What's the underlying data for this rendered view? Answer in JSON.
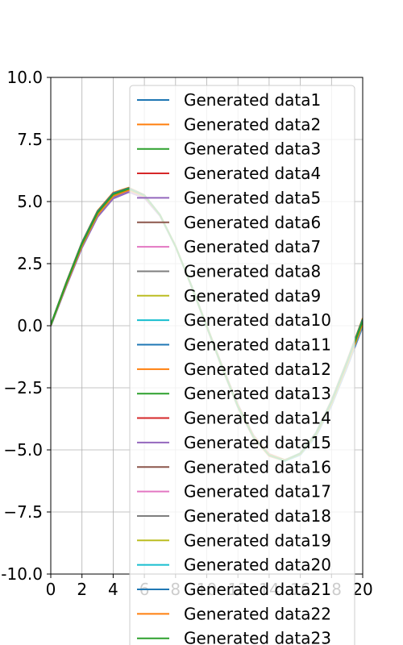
{
  "chart_data": {
    "type": "line",
    "title": "",
    "xlabel": "",
    "ylabel": "",
    "xlim": [
      0,
      20
    ],
    "ylim": [
      -10,
      10
    ],
    "grid": true,
    "legend_position": "upper-right",
    "x_ticks": [
      "0",
      "2",
      "4",
      "6",
      "8",
      "10",
      "12",
      "14",
      "16",
      "18",
      "20"
    ],
    "y_ticks": [
      "10.0",
      "7.5",
      "5.0",
      "2.5",
      "0.0",
      "−2.5",
      "−5.0",
      "−7.5",
      "-10.0"
    ],
    "x": [
      0,
      1,
      2,
      3,
      4,
      5,
      6,
      7,
      8,
      9,
      10,
      11,
      12,
      13,
      14,
      15,
      16,
      17,
      18,
      19,
      20
    ],
    "series": [
      {
        "name": "Generated data1",
        "color": "#1f77b4",
        "values": [
          0.0,
          1.65,
          3.2,
          4.45,
          5.2,
          5.45,
          5.2,
          4.45,
          3.2,
          1.65,
          0.0,
          -1.65,
          -3.2,
          -4.45,
          -5.2,
          -5.45,
          -5.2,
          -4.45,
          -3.2,
          -1.65,
          0.0
        ]
      },
      {
        "name": "Generated data2",
        "color": "#ff7f0e",
        "values": [
          0.02,
          1.68,
          3.24,
          4.48,
          5.23,
          5.47,
          5.22,
          4.46,
          3.21,
          1.65,
          0.0,
          -1.64,
          -3.18,
          -4.42,
          -5.16,
          -5.4,
          -5.15,
          -4.38,
          -3.12,
          -1.56,
          0.1
        ]
      },
      {
        "name": "Generated data3",
        "color": "#2ca02c",
        "values": [
          0.05,
          1.75,
          3.35,
          4.62,
          5.35,
          5.55,
          5.26,
          4.47,
          3.2,
          1.62,
          -0.05,
          -1.72,
          -3.28,
          -4.52,
          -5.24,
          -5.44,
          -5.14,
          -4.33,
          -3.03,
          -1.44,
          0.25
        ]
      },
      {
        "name": "Generated data4",
        "color": "#d62728",
        "values": [
          0.03,
          1.71,
          3.3,
          4.56,
          5.3,
          5.51,
          5.24,
          4.47,
          3.2,
          1.63,
          -0.02,
          -1.68,
          -3.23,
          -4.47,
          -5.2,
          -5.42,
          -5.15,
          -4.36,
          -3.08,
          -1.5,
          0.18
        ]
      },
      {
        "name": "Generated data5",
        "color": "#9467bd",
        "values": [
          -0.02,
          1.6,
          3.14,
          4.38,
          5.12,
          5.38,
          5.15,
          4.42,
          3.18,
          1.64,
          0.0,
          -1.63,
          -3.17,
          -4.41,
          -5.16,
          -5.42,
          -5.19,
          -4.45,
          -3.22,
          -1.68,
          -0.04
        ]
      },
      {
        "name": "Generated data6",
        "color": "#8c564b",
        "values": [
          0.04,
          1.73,
          3.32,
          4.58,
          5.32,
          5.52,
          5.25,
          4.46,
          3.19,
          1.62,
          -0.03,
          -1.7,
          -3.26,
          -4.5,
          -5.23,
          -5.44,
          -5.16,
          -4.36,
          -3.07,
          -1.48,
          0.2
        ]
      },
      {
        "name": "Generated data7",
        "color": "#e377c2",
        "values": [
          0.01,
          1.66,
          3.22,
          4.47,
          5.22,
          5.46,
          5.21,
          4.46,
          3.2,
          1.64,
          0.0,
          -1.65,
          -3.19,
          -4.43,
          -5.17,
          -5.42,
          -5.17,
          -4.41,
          -3.16,
          -1.6,
          0.06
        ]
      },
      {
        "name": "Generated data8",
        "color": "#7f7f7f",
        "values": [
          0.0,
          1.64,
          3.19,
          4.44,
          5.19,
          5.44,
          5.2,
          4.45,
          3.2,
          1.65,
          0.0,
          -1.65,
          -3.2,
          -4.45,
          -5.2,
          -5.44,
          -5.2,
          -4.44,
          -3.18,
          -1.62,
          0.03
        ]
      },
      {
        "name": "Generated data9",
        "color": "#bcbd22",
        "values": [
          0.02,
          1.69,
          3.26,
          4.51,
          5.26,
          5.49,
          5.23,
          4.47,
          3.21,
          1.64,
          -0.01,
          -1.66,
          -3.21,
          -4.45,
          -5.18,
          -5.41,
          -5.14,
          -4.37,
          -3.1,
          -1.53,
          0.14
        ]
      },
      {
        "name": "Generated data10",
        "color": "#17becf",
        "values": [
          -0.01,
          1.62,
          3.17,
          4.41,
          5.16,
          5.41,
          5.18,
          4.44,
          3.19,
          1.65,
          0.0,
          -1.64,
          -3.19,
          -4.43,
          -5.18,
          -5.43,
          -5.2,
          -4.45,
          -3.21,
          -1.66,
          -0.02
        ]
      },
      {
        "name": "Generated data11",
        "color": "#1f77b4",
        "values": [
          0.03,
          1.7,
          3.28,
          4.54,
          5.28,
          5.5,
          5.23,
          4.46,
          3.2,
          1.63,
          -0.02,
          -1.67,
          -3.22,
          -4.46,
          -5.19,
          -5.41,
          -5.14,
          -4.36,
          -3.09,
          -1.51,
          0.16
        ]
      },
      {
        "name": "Generated data12",
        "color": "#ff7f0e",
        "values": [
          0.05,
          1.76,
          3.36,
          4.63,
          5.36,
          5.56,
          5.27,
          4.47,
          3.19,
          1.61,
          -0.06,
          -1.73,
          -3.29,
          -4.53,
          -5.25,
          -5.44,
          -5.13,
          -4.31,
          -3.0,
          -1.4,
          0.3
        ]
      },
      {
        "name": "Generated data13",
        "color": "#2ca02c",
        "values": [
          0.04,
          1.74,
          3.34,
          4.6,
          5.33,
          5.54,
          5.26,
          4.47,
          3.2,
          1.62,
          -0.04,
          -1.71,
          -3.27,
          -4.5,
          -5.22,
          -5.42,
          -5.13,
          -4.32,
          -3.02,
          -1.43,
          0.27
        ]
      },
      {
        "name": "Generated data14",
        "color": "#d62728",
        "values": [
          0.01,
          1.67,
          3.23,
          4.48,
          5.23,
          5.47,
          5.22,
          4.46,
          3.2,
          1.64,
          0.0,
          -1.65,
          -3.2,
          -4.44,
          -5.18,
          -5.42,
          -5.16,
          -4.39,
          -3.13,
          -1.57,
          0.09
        ]
      },
      {
        "name": "Generated data15",
        "color": "#9467bd",
        "values": [
          -0.01,
          1.61,
          3.15,
          4.39,
          5.14,
          5.39,
          5.16,
          4.43,
          3.19,
          1.65,
          0.0,
          -1.64,
          -3.18,
          -4.42,
          -5.17,
          -5.43,
          -5.2,
          -4.46,
          -3.22,
          -1.67,
          -0.03
        ]
      },
      {
        "name": "Generated data16",
        "color": "#8c564b",
        "values": [
          0.02,
          1.69,
          3.25,
          4.5,
          5.25,
          5.48,
          5.22,
          4.46,
          3.2,
          1.64,
          -0.01,
          -1.66,
          -3.21,
          -4.45,
          -5.19,
          -5.42,
          -5.15,
          -4.38,
          -3.11,
          -1.54,
          0.12
        ]
      },
      {
        "name": "Generated data17",
        "color": "#e377c2",
        "values": [
          0.0,
          1.65,
          3.21,
          4.46,
          5.21,
          5.45,
          5.21,
          4.45,
          3.2,
          1.65,
          0.0,
          -1.65,
          -3.2,
          -4.44,
          -5.19,
          -5.43,
          -5.18,
          -4.42,
          -3.17,
          -1.61,
          0.05
        ]
      },
      {
        "name": "Generated data18",
        "color": "#7f7f7f",
        "values": [
          0.03,
          1.72,
          3.31,
          4.57,
          5.31,
          5.52,
          5.24,
          4.46,
          3.19,
          1.62,
          -0.03,
          -1.69,
          -3.25,
          -4.49,
          -5.22,
          -5.43,
          -5.15,
          -4.35,
          -3.06,
          -1.47,
          0.21
        ]
      },
      {
        "name": "Generated data19",
        "color": "#bcbd22",
        "values": [
          0.02,
          1.7,
          3.27,
          4.52,
          5.27,
          5.5,
          5.23,
          4.47,
          3.21,
          1.64,
          -0.01,
          -1.67,
          -3.22,
          -4.46,
          -5.19,
          -5.42,
          -5.14,
          -4.37,
          -3.1,
          -1.52,
          0.15
        ]
      },
      {
        "name": "Generated data20",
        "color": "#17becf",
        "values": [
          0.0,
          1.66,
          3.21,
          4.46,
          5.21,
          5.46,
          5.21,
          4.46,
          3.2,
          1.65,
          0.0,
          -1.65,
          -3.2,
          -4.45,
          -5.2,
          -5.45,
          -5.2,
          -4.45,
          -3.2,
          -1.64,
          0.01
        ]
      },
      {
        "name": "Generated data21",
        "color": "#1f77b4",
        "values": [
          0.04,
          1.73,
          3.33,
          4.59,
          5.33,
          5.53,
          5.25,
          4.47,
          3.2,
          1.62,
          -0.04,
          -1.7,
          -3.26,
          -4.49,
          -5.21,
          -5.42,
          -5.14,
          -4.33,
          -3.04,
          -1.45,
          0.24
        ]
      },
      {
        "name": "Generated data22",
        "color": "#ff7f0e",
        "values": [
          0.01,
          1.66,
          3.22,
          4.47,
          5.22,
          5.46,
          5.21,
          4.46,
          3.2,
          1.64,
          0.0,
          -1.65,
          -3.2,
          -4.44,
          -5.18,
          -5.42,
          -5.17,
          -4.4,
          -3.14,
          -1.58,
          0.08
        ]
      },
      {
        "name": "Generated data23",
        "color": "#2ca02c",
        "values": [
          0.03,
          1.71,
          3.29,
          4.55,
          5.29,
          5.51,
          5.24,
          4.46,
          3.19,
          1.63,
          -0.02,
          -1.68,
          -3.24,
          -4.48,
          -5.21,
          -5.43,
          -5.15,
          -4.36,
          -3.08,
          -1.49,
          0.19
        ]
      }
    ]
  }
}
